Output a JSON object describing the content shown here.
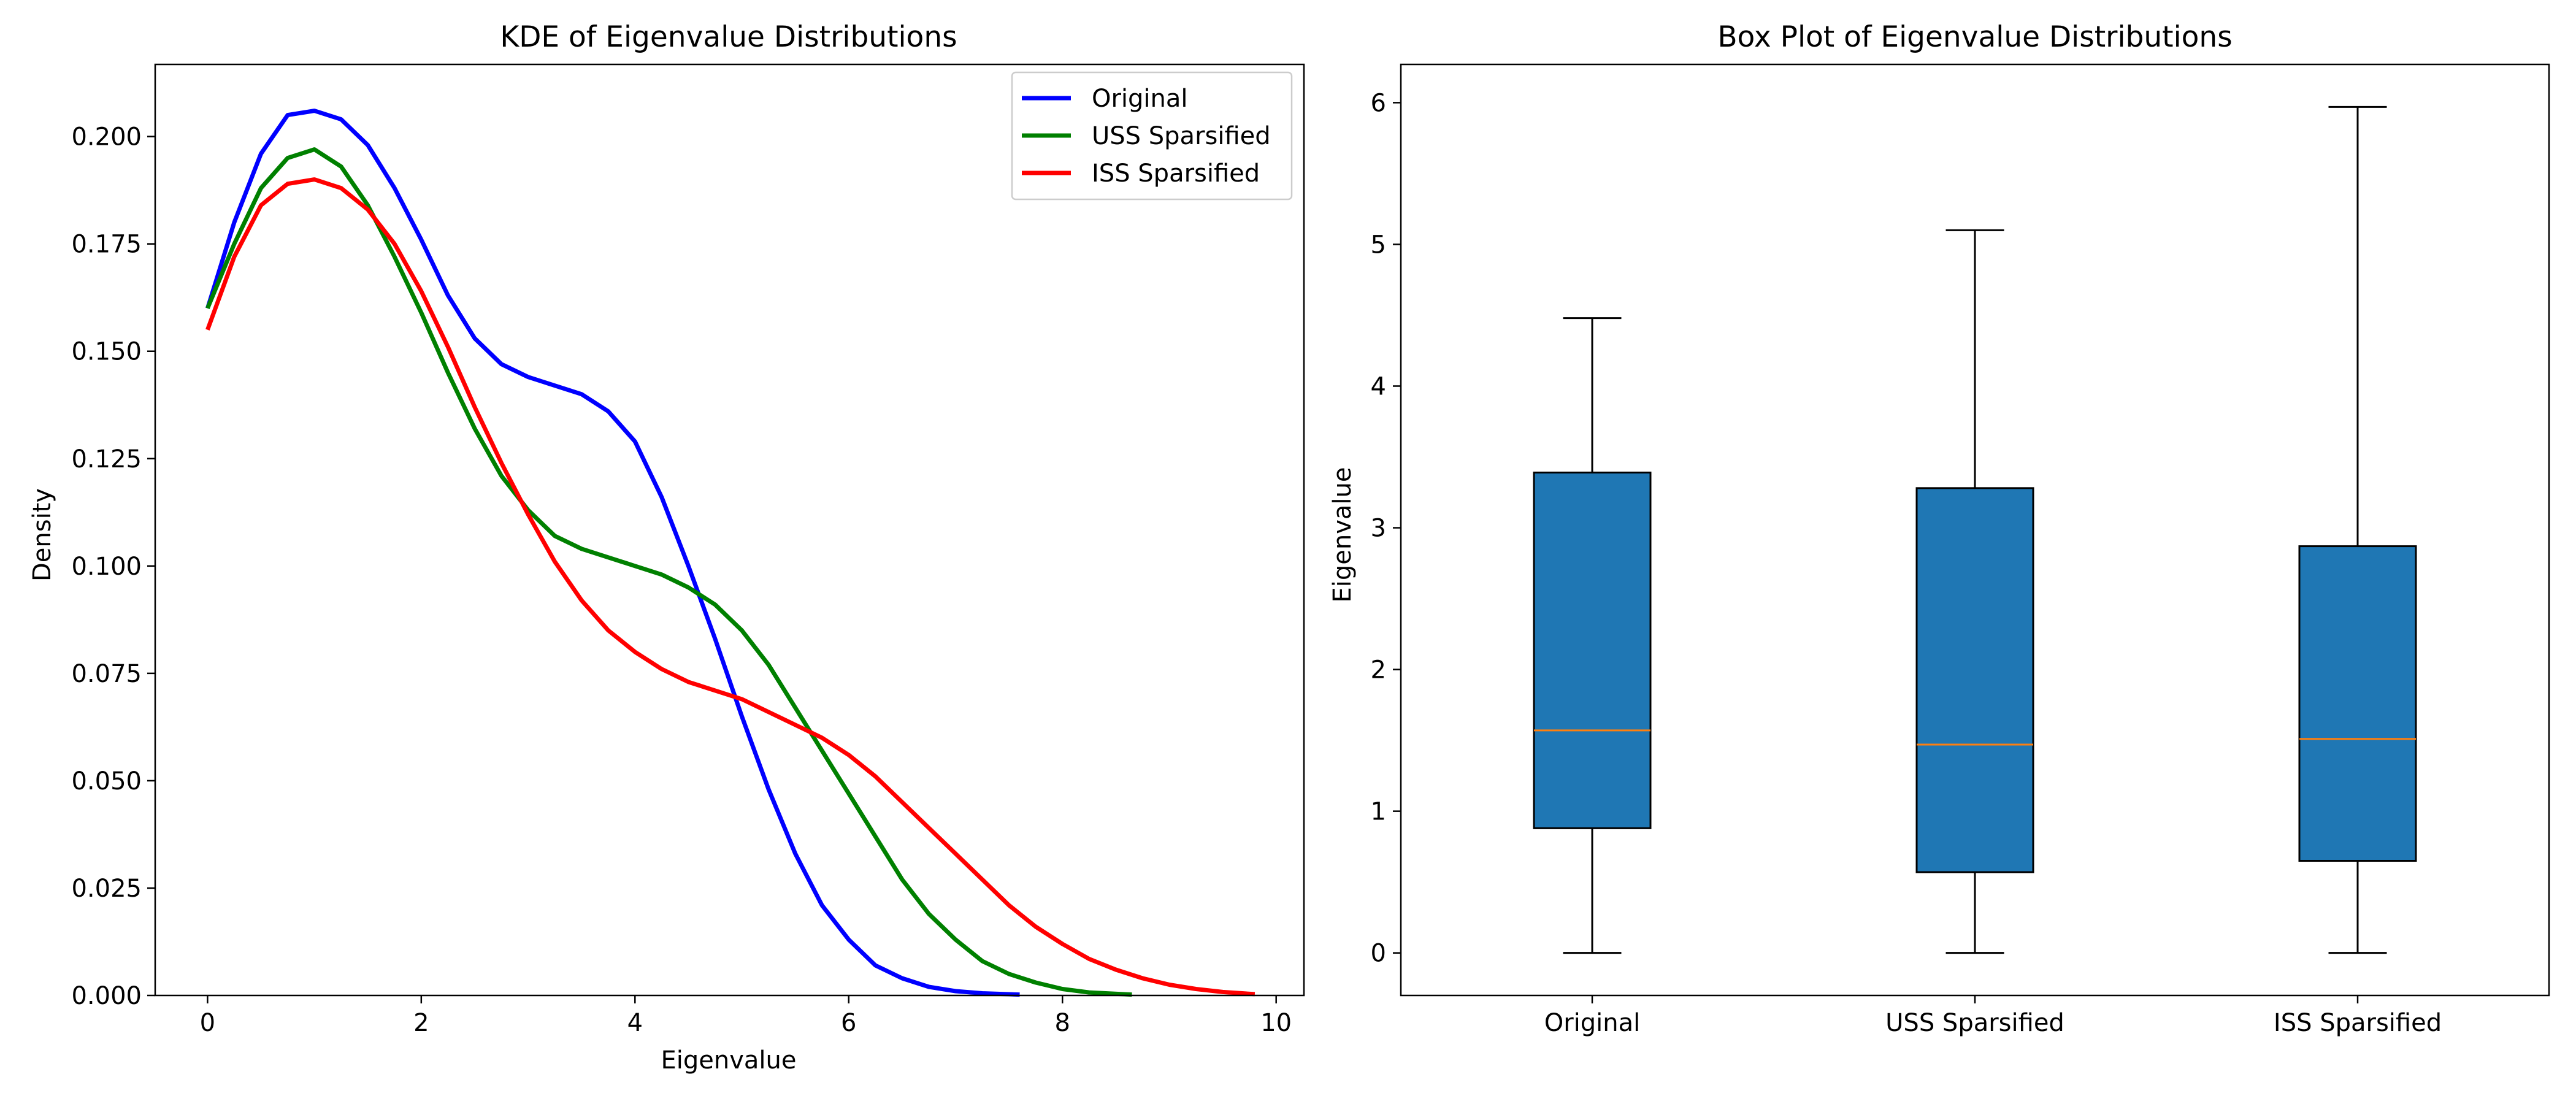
{
  "chart_data": [
    {
      "type": "line",
      "title": "KDE of Eigenvalue Distributions",
      "xlabel": "Eigenvalue",
      "ylabel": "Density",
      "xlim": [
        -0.49,
        10.26
      ],
      "ylim": [
        0,
        0.2168
      ],
      "xticks": [
        0,
        2,
        4,
        6,
        8,
        10
      ],
      "xtick_labels": [
        "0",
        "2",
        "4",
        "6",
        "8",
        "10"
      ],
      "yticks": [
        0,
        0.025,
        0.05,
        0.075,
        0.1,
        0.125,
        0.15,
        0.175,
        0.2
      ],
      "ytick_labels": [
        "0.000",
        "0.025",
        "0.050",
        "0.075",
        "0.100",
        "0.125",
        "0.150",
        "0.175",
        "0.200"
      ],
      "grid": false,
      "legend_position": "top-right",
      "series": [
        {
          "name": "Original",
          "color": "#0000ff",
          "x": [
            0,
            0.25,
            0.5,
            0.75,
            1.0,
            1.25,
            1.5,
            1.75,
            2.0,
            2.25,
            2.5,
            2.75,
            3.0,
            3.25,
            3.5,
            3.75,
            4.0,
            4.25,
            4.5,
            4.75,
            5.0,
            5.25,
            5.5,
            5.75,
            6.0,
            6.25,
            6.5,
            6.75,
            7.0,
            7.25,
            7.6
          ],
          "y": [
            0.16,
            0.18,
            0.196,
            0.205,
            0.206,
            0.204,
            0.198,
            0.188,
            0.176,
            0.163,
            0.153,
            0.147,
            0.144,
            0.142,
            0.14,
            0.136,
            0.129,
            0.116,
            0.1,
            0.083,
            0.065,
            0.048,
            0.033,
            0.021,
            0.013,
            0.007,
            0.004,
            0.002,
            0.001,
            0.0005,
            0.0002
          ]
        },
        {
          "name": "USS Sparsified",
          "color": "#008000",
          "x": [
            0,
            0.25,
            0.5,
            0.75,
            1.0,
            1.25,
            1.5,
            1.75,
            2.0,
            2.25,
            2.5,
            2.75,
            3.0,
            3.25,
            3.5,
            3.75,
            4.0,
            4.25,
            4.5,
            4.75,
            5.0,
            5.25,
            5.5,
            5.75,
            6.0,
            6.25,
            6.5,
            6.75,
            7.0,
            7.25,
            7.5,
            7.75,
            8.0,
            8.25,
            8.65
          ],
          "y": [
            0.16,
            0.175,
            0.188,
            0.195,
            0.197,
            0.193,
            0.184,
            0.172,
            0.159,
            0.145,
            0.132,
            0.121,
            0.113,
            0.107,
            0.104,
            0.102,
            0.1,
            0.098,
            0.095,
            0.091,
            0.085,
            0.077,
            0.067,
            0.057,
            0.047,
            0.037,
            0.027,
            0.019,
            0.013,
            0.008,
            0.005,
            0.003,
            0.0015,
            0.0007,
            0.0002
          ]
        },
        {
          "name": "ISS Sparsified",
          "color": "#ff0000",
          "x": [
            0,
            0.25,
            0.5,
            0.75,
            1.0,
            1.25,
            1.5,
            1.75,
            2.0,
            2.25,
            2.5,
            2.75,
            3.0,
            3.25,
            3.5,
            3.75,
            4.0,
            4.25,
            4.5,
            4.75,
            5.0,
            5.25,
            5.5,
            5.75,
            6.0,
            6.25,
            6.5,
            6.75,
            7.0,
            7.25,
            7.5,
            7.75,
            8.0,
            8.25,
            8.5,
            8.75,
            9.0,
            9.25,
            9.5,
            9.8
          ],
          "y": [
            0.155,
            0.172,
            0.184,
            0.189,
            0.19,
            0.188,
            0.183,
            0.175,
            0.164,
            0.151,
            0.137,
            0.124,
            0.112,
            0.101,
            0.092,
            0.085,
            0.08,
            0.076,
            0.073,
            0.071,
            0.069,
            0.066,
            0.063,
            0.06,
            0.056,
            0.051,
            0.045,
            0.039,
            0.033,
            0.027,
            0.021,
            0.016,
            0.012,
            0.0085,
            0.006,
            0.004,
            0.0025,
            0.0015,
            0.0008,
            0.0003
          ]
        }
      ]
    },
    {
      "type": "box",
      "title": "Box Plot of Eigenvalue Distributions",
      "xlabel": "",
      "ylabel": "Eigenvalue",
      "ylim": [
        -0.3,
        6.27
      ],
      "yticks": [
        0,
        1,
        2,
        3,
        4,
        5,
        6
      ],
      "ytick_labels": [
        "0",
        "1",
        "2",
        "3",
        "4",
        "5",
        "6"
      ],
      "grid": false,
      "box_color": "#1f77b4",
      "median_color": "#ff7f0e",
      "categories": [
        "Original",
        "USS Sparsified",
        "ISS Sparsified"
      ],
      "boxes": [
        {
          "name": "Original",
          "whisker_low": 0.0,
          "q1": 0.88,
          "median": 1.57,
          "q3": 3.39,
          "whisker_high": 4.48
        },
        {
          "name": "USS Sparsified",
          "whisker_low": 0.0,
          "q1": 0.57,
          "median": 1.47,
          "q3": 3.28,
          "whisker_high": 5.1
        },
        {
          "name": "ISS Sparsified",
          "whisker_low": 0.0,
          "q1": 0.65,
          "median": 1.51,
          "q3": 2.87,
          "whisker_high": 5.97
        }
      ]
    }
  ]
}
